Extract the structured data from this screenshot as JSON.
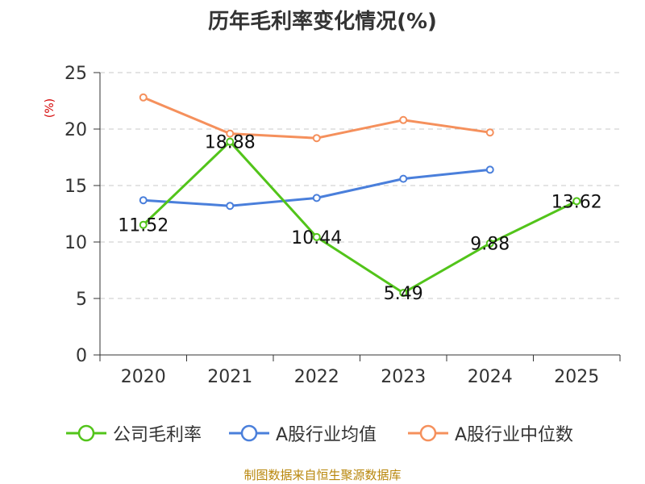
{
  "chart_data": {
    "type": "line",
    "title": "历年毛利率变化情况(%)",
    "ylabel": "(%)",
    "xlabel": "",
    "categories": [
      "2020",
      "2021",
      "2022",
      "2023",
      "2024",
      "2025"
    ],
    "ylim": [
      0,
      25
    ],
    "yticks": [
      0,
      5,
      10,
      15,
      20,
      25
    ],
    "grid": true,
    "legend_position": "bottom",
    "series": [
      {
        "name": "公司毛利率",
        "color": "#52c41a",
        "values": [
          11.52,
          18.88,
          10.44,
          5.49,
          9.88,
          13.62
        ],
        "labels": [
          "11.52",
          "18.88",
          "10.44",
          "5.49",
          "9.88",
          "13.62"
        ]
      },
      {
        "name": "A股行业均值",
        "color": "#4a7fdb",
        "values": [
          13.7,
          13.2,
          13.9,
          15.6,
          16.4,
          null
        ]
      },
      {
        "name": "A股行业中位数",
        "color": "#f5905c",
        "values": [
          22.8,
          19.6,
          19.2,
          20.8,
          19.7,
          null
        ]
      }
    ]
  },
  "source": "制图数据来自恒生聚源数据库"
}
